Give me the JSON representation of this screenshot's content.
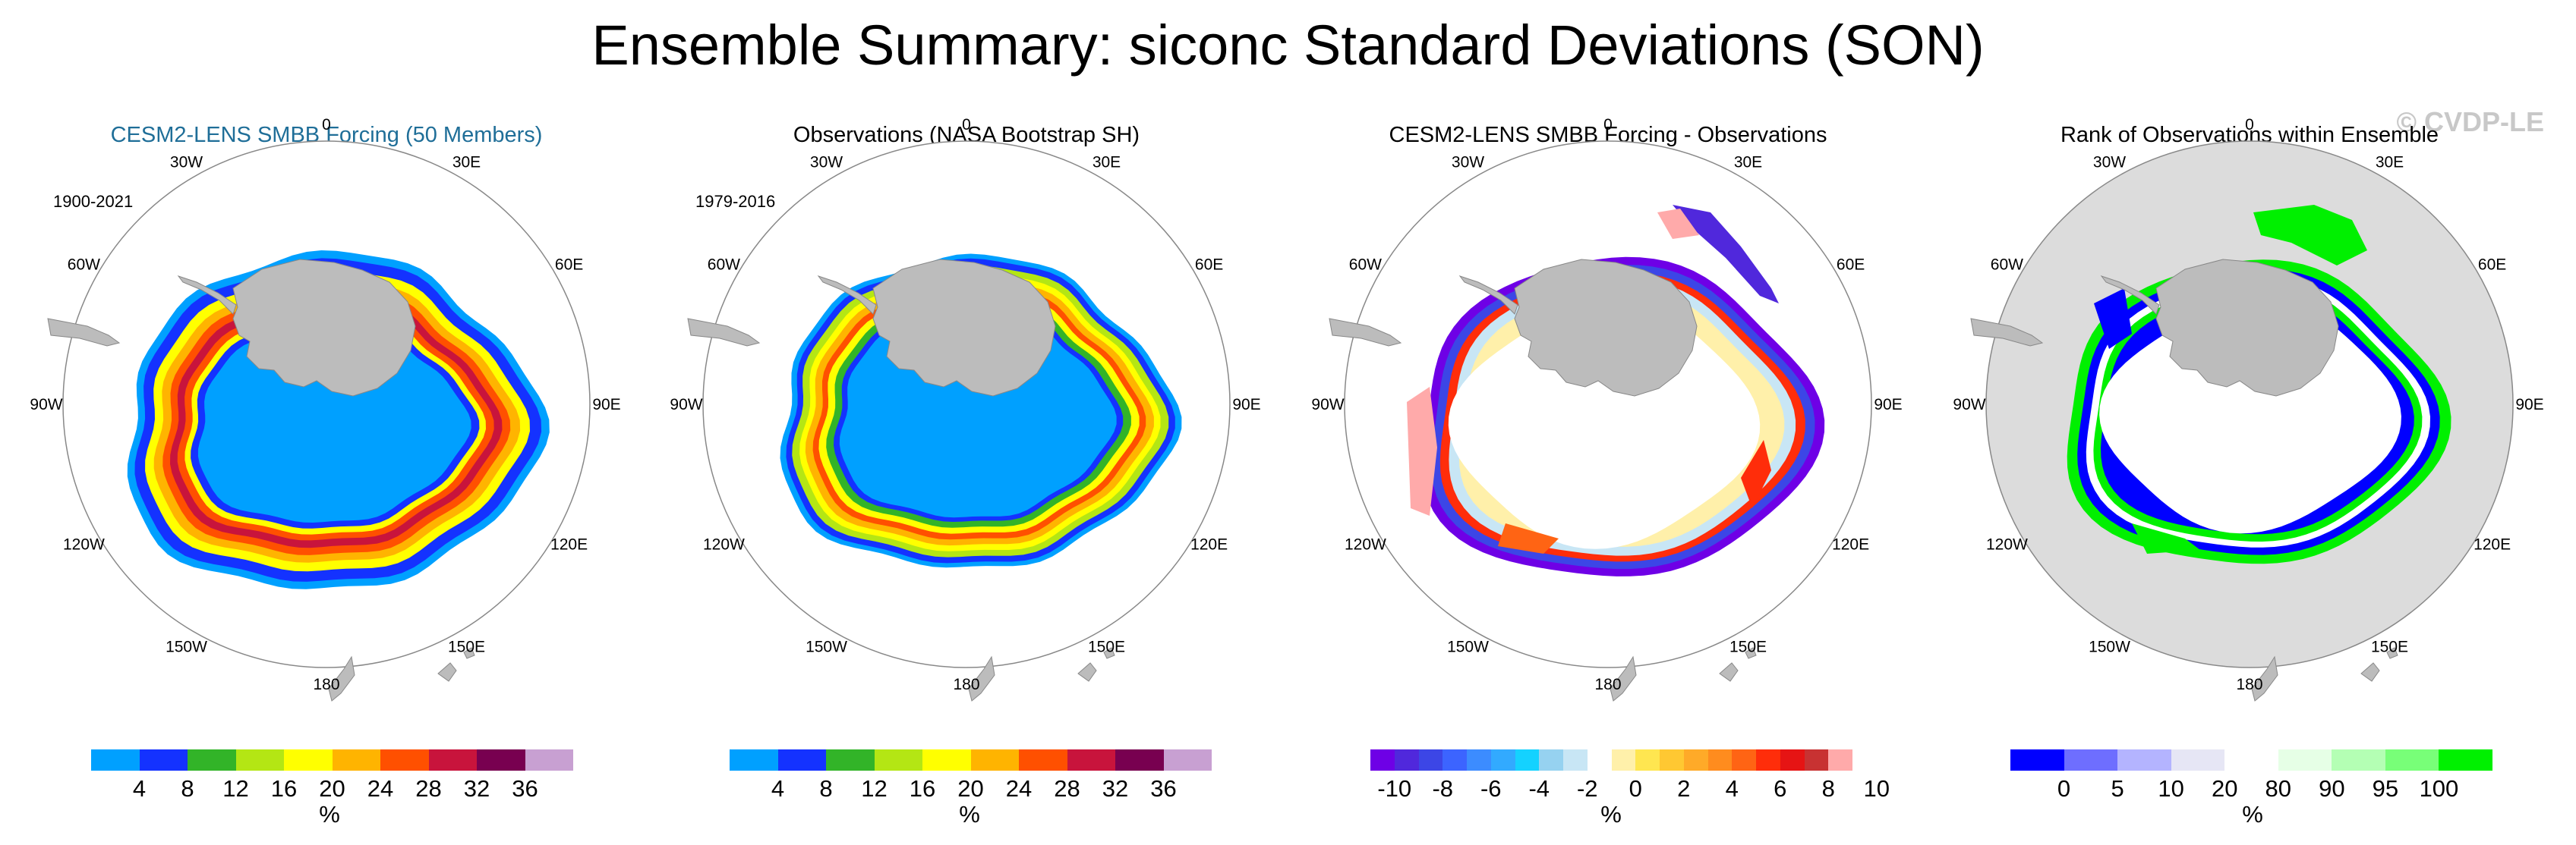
{
  "title": "Ensemble Summary: siconc Standard Deviations (SON)",
  "watermark": "© CVDP-LE",
  "longitude_labels": [
    "0",
    "30E",
    "60E",
    "90E",
    "120E",
    "150E",
    "180",
    "150W",
    "120W",
    "90W",
    "60W",
    "30W"
  ],
  "colors": {
    "land": "#bcbcbc",
    "ocean_mask": "#dcdcdc",
    "std_scale": [
      "#00a0ff",
      "#1432ff",
      "#32b428",
      "#b4e614",
      "#ffff00",
      "#ffb400",
      "#ff5000",
      "#c8143c",
      "#780050",
      "#c8a0d2"
    ],
    "diff_scale": [
      "#6e00e6",
      "#5028dc",
      "#3c46e6",
      "#3c64ff",
      "#3c8cff",
      "#32aaff",
      "#14d2ff",
      "#96d2f0",
      "#c8e6f5",
      "#ffffff",
      "#fff0aa",
      "#ffe650",
      "#ffc832",
      "#ffaa28",
      "#ff8c1e",
      "#ff6414",
      "#ff2d0a",
      "#e61414",
      "#c83232",
      "#ffaaaa"
    ],
    "rank_scale": [
      "#0000ff",
      "#6e6eff",
      "#b4b4ff",
      "#e6e6f5",
      "#ffffff",
      "#e6ffe6",
      "#b4ffb4",
      "#78ff78",
      "#00f000"
    ]
  },
  "panels": [
    {
      "title": "CESM2-LENS SMBB Forcing (50 Members)",
      "period": "1900-2021",
      "colorbar": {
        "labels": [
          "4",
          "8",
          "12",
          "16",
          "20",
          "24",
          "28",
          "32",
          "36"
        ],
        "unit": "%"
      }
    },
    {
      "title": "Observations (NASA Bootstrap SH)",
      "period": "1979-2016",
      "colorbar": {
        "labels": [
          "4",
          "8",
          "12",
          "16",
          "20",
          "24",
          "28",
          "32",
          "36"
        ],
        "unit": "%"
      }
    },
    {
      "title": "CESM2-LENS SMBB Forcing - Observations",
      "colorbar": {
        "labels": [
          "-10",
          "-8",
          "-6",
          "-4",
          "-2",
          "0",
          "2",
          "4",
          "6",
          "8",
          "10"
        ],
        "unit": "%"
      }
    },
    {
      "title": "Rank of Observations within Ensemble",
      "colorbar": {
        "labels": [
          "0",
          "5",
          "10",
          "20",
          "80",
          "90",
          "95",
          "100"
        ],
        "unit": "%"
      }
    }
  ]
}
